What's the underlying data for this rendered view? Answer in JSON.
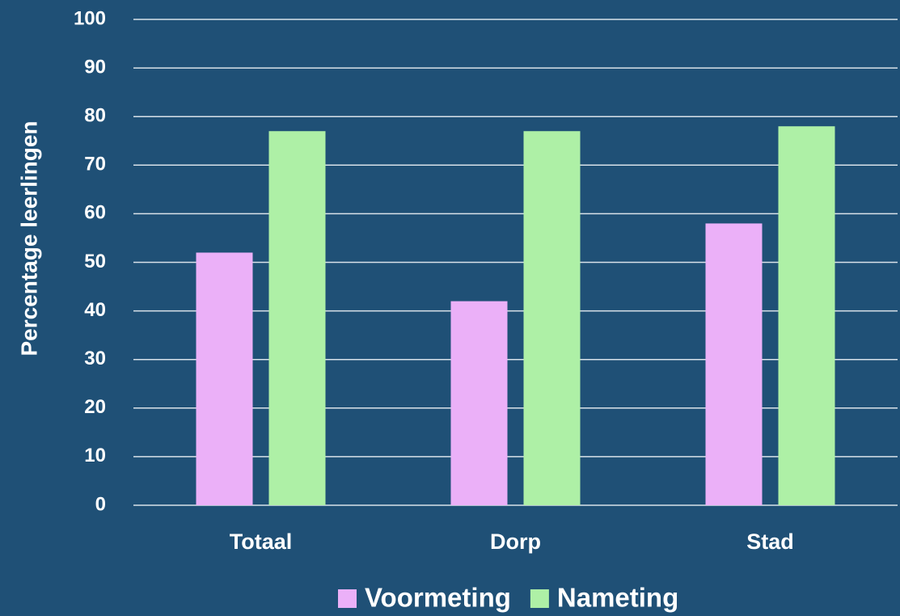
{
  "chart_data": {
    "type": "bar",
    "y_label": "Percentage leerlingen",
    "categories": [
      "Totaal",
      "Dorp",
      "Stad"
    ],
    "series": [
      {
        "name": "Voormeting",
        "color": "#ebb0f8",
        "values": [
          52,
          42,
          58
        ]
      },
      {
        "name": "Nameting",
        "color": "#aef0a6",
        "values": [
          77,
          77,
          78
        ]
      }
    ],
    "ylim": [
      0,
      100
    ],
    "yticks": [
      0,
      10,
      20,
      30,
      40,
      50,
      60,
      70,
      80,
      90,
      100
    ],
    "grid": true,
    "legend": "bottom"
  }
}
